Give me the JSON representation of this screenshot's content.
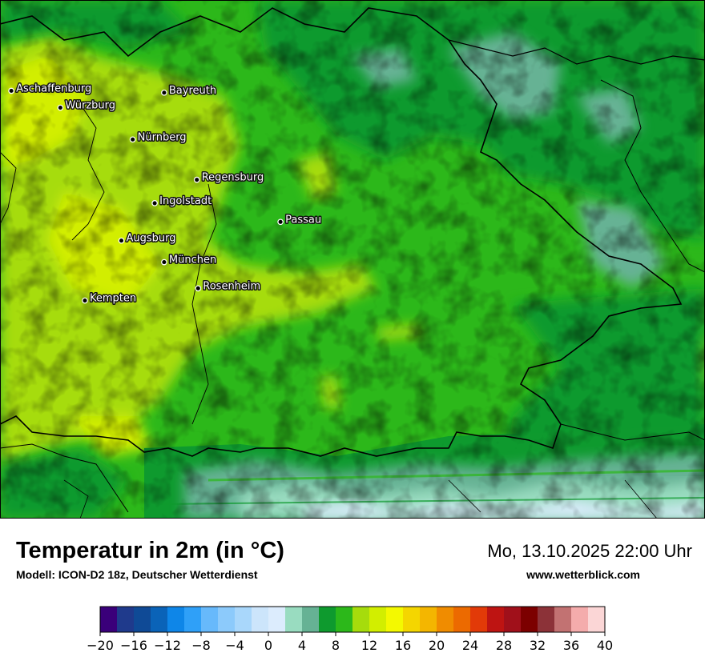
{
  "title": "Temperatur in 2m (in °C)",
  "model": "Modell: ICON-D2 18z, Deutscher Wetterdienst",
  "datetime": "Mo, 13.10.2025 22:00 Uhr",
  "website": "www.wetterblick.com",
  "cities": [
    {
      "name": "Aschaffenburg",
      "lon": 9.15,
      "lat": 49.97
    },
    {
      "name": "Würzburg",
      "lon": 9.93,
      "lat": 49.79
    },
    {
      "name": "Bayreuth",
      "lon": 11.58,
      "lat": 49.95
    },
    {
      "name": "Nürnberg",
      "lon": 11.08,
      "lat": 49.45
    },
    {
      "name": "Regensburg",
      "lon": 12.1,
      "lat": 49.02
    },
    {
      "name": "Ingolstadt",
      "lon": 11.43,
      "lat": 48.77
    },
    {
      "name": "Passau",
      "lon": 13.43,
      "lat": 48.57
    },
    {
      "name": "Augsburg",
      "lon": 10.9,
      "lat": 48.37
    },
    {
      "name": "München",
      "lon": 11.58,
      "lat": 48.14
    },
    {
      "name": "Rosenheim",
      "lon": 12.12,
      "lat": 47.86
    },
    {
      "name": "Kempten",
      "lon": 10.32,
      "lat": 47.73
    }
  ],
  "legend": {
    "ticks": [
      "−20",
      "−16",
      "−12",
      "−8",
      "−4",
      "0",
      "4",
      "8",
      "12",
      "16",
      "20",
      "24",
      "28",
      "32",
      "36",
      "40"
    ],
    "colors": [
      "#3a007a",
      "#1f3a8c",
      "#0f4a96",
      "#0a63b8",
      "#0e86e8",
      "#2fa0f8",
      "#67b9fb",
      "#8ccafb",
      "#a9d7fb",
      "#cce5fb",
      "#dcecfd",
      "#99dcc0",
      "#66b294",
      "#0e9a2e",
      "#2cb81a",
      "#a6dc0c",
      "#d2ee00",
      "#f4f900",
      "#f4d600",
      "#f4b600",
      "#f08c00",
      "#ec6a00",
      "#e23a08",
      "#be1412",
      "#a0101a",
      "#7c0000",
      "#8c3238",
      "#c27272",
      "#f4acac",
      "#fbd6d6"
    ]
  }
}
